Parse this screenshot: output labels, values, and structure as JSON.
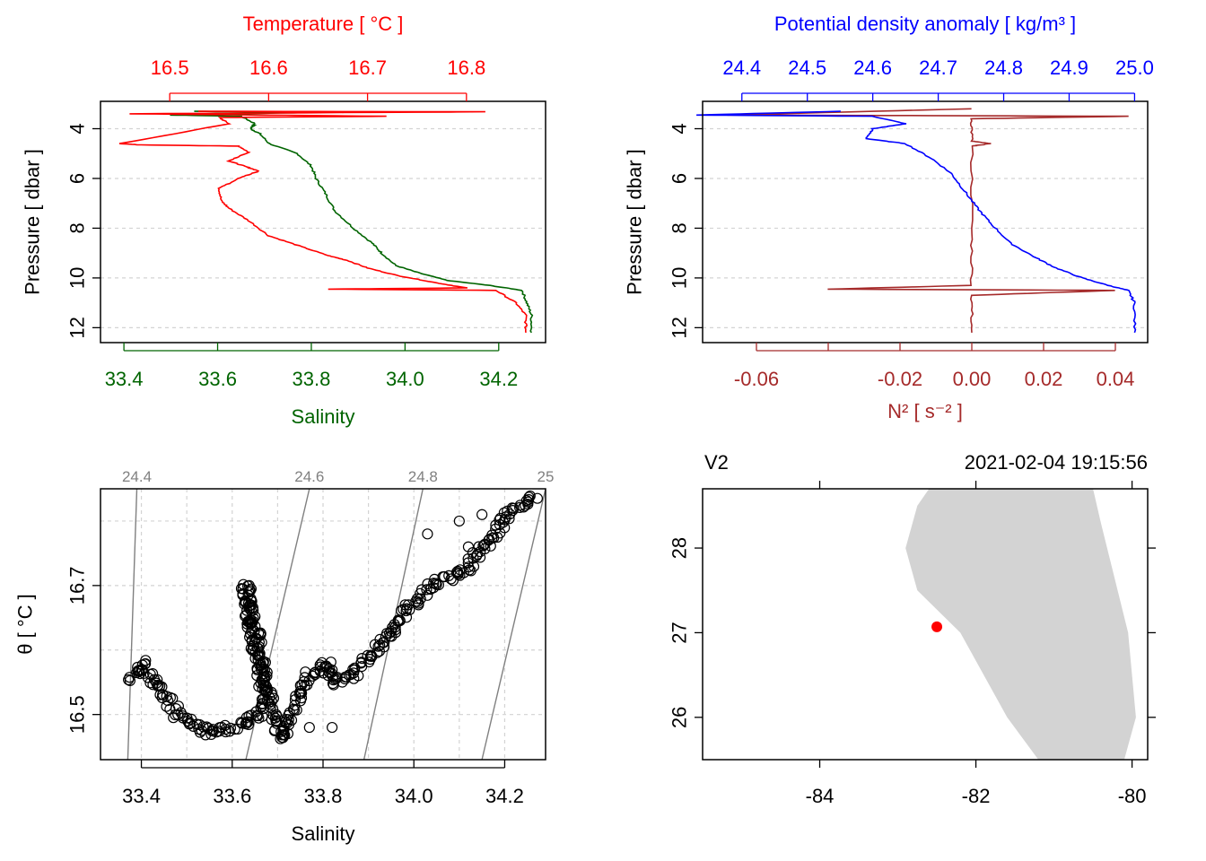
{
  "colors": {
    "temperature": "#ff0000",
    "salinity": "#006400",
    "density": "#0000ff",
    "n2": "#a52a2a",
    "grid": "#d3d3d3",
    "isopycnal": "#808080",
    "land": "#d3d3d3",
    "station": "#ff0000"
  },
  "chart_data": [
    {
      "type": "line",
      "panel": "profile-temperature-salinity",
      "title": "Temperature [ °C ]",
      "xlabel": "Salinity",
      "ylabel": "Pressure [ dbar ]",
      "ylim": [
        12.6,
        2.9
      ],
      "pressure_ticks": [
        "4",
        "6",
        "8",
        "10",
        "12"
      ],
      "top_axis": {
        "label": "Temperature [ °C ]",
        "ticks": [
          "16.5",
          "16.6",
          "16.7",
          "16.8"
        ],
        "lim": [
          16.43,
          16.88
        ]
      },
      "bottom_axis": {
        "label": "Salinity",
        "ticks": [
          "33.4",
          "33.6",
          "33.8",
          "34.0",
          "34.2"
        ],
        "lim": [
          33.35,
          34.3
        ]
      },
      "series": [
        {
          "name": "Temperature",
          "axis": "top",
          "points": [
            [
              16.53,
              3.3
            ],
            [
              16.82,
              3.32
            ],
            [
              16.46,
              3.4
            ],
            [
              16.72,
              3.5
            ],
            [
              16.55,
              3.55
            ],
            [
              16.56,
              3.8
            ],
            [
              16.45,
              4.6
            ],
            [
              16.47,
              4.65
            ],
            [
              16.57,
              4.7
            ],
            [
              16.58,
              4.95
            ],
            [
              16.56,
              5.3
            ],
            [
              16.575,
              5.5
            ],
            [
              16.59,
              5.7
            ],
            [
              16.57,
              6.0
            ],
            [
              16.55,
              6.4
            ],
            [
              16.552,
              6.9
            ],
            [
              16.56,
              7.2
            ],
            [
              16.58,
              7.7
            ],
            [
              16.6,
              8.3
            ],
            [
              16.63,
              8.7
            ],
            [
              16.66,
              9.1
            ],
            [
              16.68,
              9.3
            ],
            [
              16.7,
              9.6
            ],
            [
              16.73,
              9.9
            ],
            [
              16.77,
              10.2
            ],
            [
              16.8,
              10.4
            ],
            [
              16.66,
              10.45
            ],
            [
              16.83,
              10.5
            ],
            [
              16.85,
              11.0
            ],
            [
              16.86,
              11.5
            ],
            [
              16.86,
              12.2
            ]
          ]
        },
        {
          "name": "Salinity",
          "axis": "bottom",
          "points": [
            [
              33.55,
              3.3
            ],
            [
              33.79,
              3.35
            ],
            [
              33.5,
              3.45
            ],
            [
              33.65,
              3.5
            ],
            [
              33.68,
              3.8
            ],
            [
              33.67,
              4.0
            ],
            [
              33.69,
              4.2
            ],
            [
              33.71,
              4.6
            ],
            [
              33.77,
              5.0
            ],
            [
              33.8,
              5.5
            ],
            [
              33.81,
              6.0
            ],
            [
              33.83,
              6.6
            ],
            [
              33.85,
              7.3
            ],
            [
              33.89,
              8.0
            ],
            [
              33.93,
              8.6
            ],
            [
              33.95,
              9.0
            ],
            [
              33.98,
              9.5
            ],
            [
              34.03,
              9.8
            ],
            [
              34.09,
              10.1
            ],
            [
              34.18,
              10.3
            ],
            [
              34.25,
              10.5
            ],
            [
              34.26,
              11.0
            ],
            [
              34.27,
              11.5
            ],
            [
              34.27,
              12.2
            ]
          ]
        }
      ]
    },
    {
      "type": "line",
      "panel": "profile-density-n2",
      "title": "Potential density anomaly [ kg/m³ ]",
      "xlabel": "N² [ s⁻² ]",
      "ylabel": "Pressure [ dbar ]",
      "ylim": [
        12.6,
        2.9
      ],
      "pressure_ticks": [
        "4",
        "6",
        "8",
        "10",
        "12"
      ],
      "top_axis": {
        "label": "Potential density anomaly [ kg/m³ ]",
        "ticks": [
          "24.4",
          "24.5",
          "24.6",
          "24.7",
          "24.8",
          "24.9",
          "25.0"
        ],
        "lim": [
          24.34,
          25.02
        ]
      },
      "bottom_axis": {
        "label": "N² [ s⁻² ]",
        "ticks": [
          "-0.06",
          "",
          "-0.02",
          "0.00",
          "0.02",
          "0.04"
        ],
        "tick_values": [
          -0.06,
          -0.04,
          -0.02,
          0.0,
          0.02,
          0.04
        ],
        "lim": [
          -0.075,
          0.049
        ]
      },
      "series": [
        {
          "name": "Potential density anomaly",
          "axis": "top",
          "points": [
            [
              24.55,
              3.3
            ],
            [
              24.33,
              3.45
            ],
            [
              24.6,
              3.5
            ],
            [
              24.65,
              3.8
            ],
            [
              24.6,
              4.0
            ],
            [
              24.59,
              4.4
            ],
            [
              24.65,
              4.6
            ],
            [
              24.69,
              5.2
            ],
            [
              24.72,
              5.8
            ],
            [
              24.74,
              6.5
            ],
            [
              24.76,
              7.2
            ],
            [
              24.78,
              7.8
            ],
            [
              24.81,
              8.6
            ],
            [
              24.85,
              9.2
            ],
            [
              24.88,
              9.6
            ],
            [
              24.92,
              10.0
            ],
            [
              24.96,
              10.3
            ],
            [
              24.99,
              10.5
            ],
            [
              25.0,
              11.0
            ],
            [
              25.0,
              12.2
            ]
          ]
        },
        {
          "name": "N²",
          "axis": "bottom",
          "points": [
            [
              0.0,
              3.2
            ],
            [
              -0.068,
              3.45
            ],
            [
              0.044,
              3.5
            ],
            [
              0.0,
              3.6
            ],
            [
              0.0,
              4.5
            ],
            [
              0.005,
              4.6
            ],
            [
              0.0,
              4.7
            ],
            [
              0.0,
              8.0
            ],
            [
              0.0,
              10.3
            ],
            [
              -0.04,
              10.45
            ],
            [
              0.04,
              10.5
            ],
            [
              0.0,
              10.7
            ],
            [
              0.0,
              12.2
            ]
          ]
        }
      ]
    },
    {
      "type": "scatter",
      "panel": "ts-diagram",
      "xlabel": "Salinity",
      "ylabel": "θ [ °C ]",
      "xlim": [
        33.31,
        34.29
      ],
      "ylim": [
        16.43,
        16.85
      ],
      "x_ticks": [
        "33.4",
        "33.6",
        "33.8",
        "34.0",
        "34.2"
      ],
      "y_ticks": [
        "16.5",
        "16.7"
      ],
      "isopycnals": [
        {
          "label": "24.4",
          "line": [
            [
              33.39,
              16.85
            ],
            [
              33.37,
              16.43
            ]
          ]
        },
        {
          "label": "24.6",
          "line": [
            [
              33.77,
              16.85
            ],
            [
              33.63,
              16.43
            ]
          ]
        },
        {
          "label": "24.8",
          "line": [
            [
              34.02,
              16.85
            ],
            [
              33.89,
              16.43
            ]
          ]
        },
        {
          "label": "25",
          "line": [
            [
              34.29,
              16.85
            ],
            [
              34.15,
              16.43
            ]
          ]
        }
      ],
      "trajectory": [
        [
          33.38,
          16.55
        ],
        [
          33.4,
          16.58
        ],
        [
          33.44,
          16.54
        ],
        [
          33.48,
          16.5
        ],
        [
          33.52,
          16.48
        ],
        [
          33.56,
          16.47
        ],
        [
          33.6,
          16.48
        ],
        [
          33.64,
          16.49
        ],
        [
          33.66,
          16.5
        ],
        [
          33.67,
          16.53
        ],
        [
          33.66,
          16.58
        ],
        [
          33.64,
          16.64
        ],
        [
          33.63,
          16.7
        ],
        [
          33.66,
          16.6
        ],
        [
          33.69,
          16.5
        ],
        [
          33.71,
          16.46
        ],
        [
          33.73,
          16.5
        ],
        [
          33.77,
          16.56
        ],
        [
          33.81,
          16.58
        ],
        [
          33.82,
          16.55
        ],
        [
          33.86,
          16.56
        ],
        [
          33.92,
          16.6
        ],
        [
          33.98,
          16.66
        ],
        [
          34.04,
          16.7
        ],
        [
          34.1,
          16.72
        ],
        [
          34.12,
          16.73
        ],
        [
          34.18,
          16.78
        ],
        [
          34.22,
          16.82
        ],
        [
          34.27,
          16.84
        ]
      ],
      "outliers": [
        [
          33.77,
          16.48
        ],
        [
          33.82,
          16.48
        ],
        [
          34.03,
          16.78
        ],
        [
          34.1,
          16.8
        ],
        [
          34.15,
          16.81
        ],
        [
          34.12,
          16.76
        ]
      ]
    },
    {
      "type": "map",
      "panel": "station-map",
      "station": "V2",
      "time": "2021-02-04 19:15:56",
      "xlim": [
        -85.5,
        -79.8
      ],
      "ylim": [
        25.5,
        28.7
      ],
      "x_ticks": [
        -84,
        -82,
        -80
      ],
      "x_tick_labels": [
        "-84",
        "-82",
        "-80"
      ],
      "y_ticks": [
        26,
        27,
        28
      ],
      "y_tick_labels": [
        "26",
        "27",
        "28"
      ],
      "station_point": [
        -82.5,
        27.07
      ],
      "land_outline": [
        [
          -82.6,
          28.7
        ],
        [
          -80.5,
          28.7
        ],
        [
          -80.4,
          28.3
        ],
        [
          -80.05,
          27.0
        ],
        [
          -79.95,
          26.0
        ],
        [
          -80.1,
          25.5
        ],
        [
          -81.2,
          25.5
        ],
        [
          -81.6,
          26.0
        ],
        [
          -82.2,
          27.0
        ],
        [
          -82.75,
          27.5
        ],
        [
          -82.9,
          28.0
        ],
        [
          -82.75,
          28.5
        ]
      ]
    }
  ]
}
